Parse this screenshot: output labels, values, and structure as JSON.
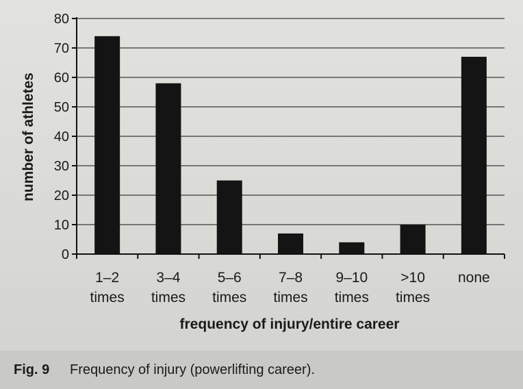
{
  "figure": {
    "label": "Fig. 9",
    "caption": "Frequency of injury (powerlifting career)."
  },
  "chart_data": {
    "type": "bar",
    "categories": [
      [
        "1–2",
        "times"
      ],
      [
        "3–4",
        "times"
      ],
      [
        "5–6",
        "times"
      ],
      [
        "7–8",
        "times"
      ],
      [
        "9–10",
        "times"
      ],
      [
        ">10",
        "times"
      ],
      [
        "none"
      ]
    ],
    "values": [
      74,
      58,
      25,
      7,
      4,
      10,
      67
    ],
    "xlabel": "frequency of injury/entire career",
    "ylabel": "number of athletes",
    "ylim": [
      0,
      80
    ],
    "yticks": [
      0,
      10,
      20,
      30,
      40,
      50,
      60,
      70,
      80
    ],
    "grid": true,
    "bar_color": "#141414",
    "grid_color": "#3a3a3a"
  }
}
